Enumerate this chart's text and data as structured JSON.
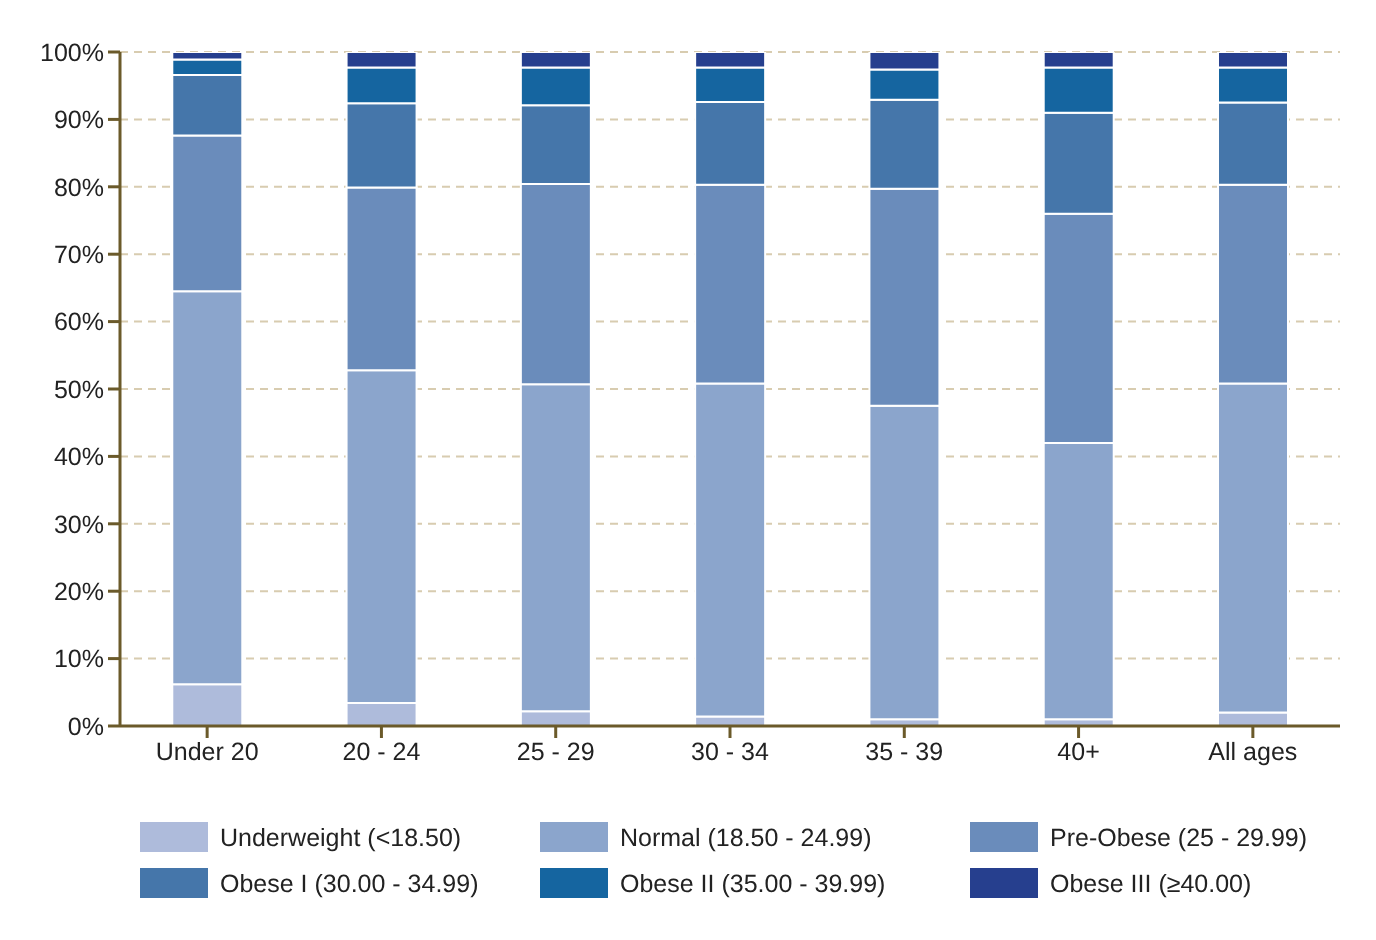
{
  "chart_data": {
    "type": "bar",
    "stacked": true,
    "categories": [
      "Under 20",
      "20 - 24",
      "25 - 29",
      "30 - 34",
      "35 - 39",
      "40+",
      "All ages"
    ],
    "series": [
      {
        "name": "Underweight (<18.50)",
        "color": "#aebbdb",
        "values": [
          6.2,
          3.4,
          2.2,
          1.4,
          1.0,
          1.0,
          2.0
        ]
      },
      {
        "name": "Normal (18.50 - 24.99)",
        "color": "#8ba5cc",
        "values": [
          58.3,
          49.4,
          48.5,
          49.4,
          46.5,
          41.0,
          48.8
        ]
      },
      {
        "name": "Pre-Obese (25 - 29.99)",
        "color": "#6a8cbb",
        "values": [
          23.1,
          27.1,
          29.7,
          29.5,
          32.2,
          34.0,
          29.5
        ]
      },
      {
        "name": "Obese I (30.00 - 34.99)",
        "color": "#4576aa",
        "values": [
          9.0,
          12.5,
          11.7,
          12.3,
          13.2,
          15.0,
          12.2
        ]
      },
      {
        "name": "Obese II (35.00 - 39.99)",
        "color": "#1565a0",
        "values": [
          2.3,
          5.3,
          5.6,
          5.1,
          4.5,
          6.7,
          5.2
        ]
      },
      {
        "name": "Obese III (≥40.00)",
        "color": "#263f8e",
        "values": [
          1.1,
          2.3,
          2.3,
          2.3,
          2.6,
          2.3,
          2.3
        ]
      }
    ],
    "ylim": [
      0,
      100
    ],
    "yticks": [
      {
        "value": 0,
        "label": "0%"
      },
      {
        "value": 10,
        "label": "10%"
      },
      {
        "value": 20,
        "label": "20%"
      },
      {
        "value": 30,
        "label": "30%"
      },
      {
        "value": 40,
        "label": "40%"
      },
      {
        "value": 50,
        "label": "50%"
      },
      {
        "value": 60,
        "label": "60%"
      },
      {
        "value": 70,
        "label": "70%"
      },
      {
        "value": 80,
        "label": "80%"
      },
      {
        "value": 90,
        "label": "90%"
      },
      {
        "value": 100,
        "label": "100%"
      }
    ],
    "grid": "y",
    "legend": "bottom"
  }
}
